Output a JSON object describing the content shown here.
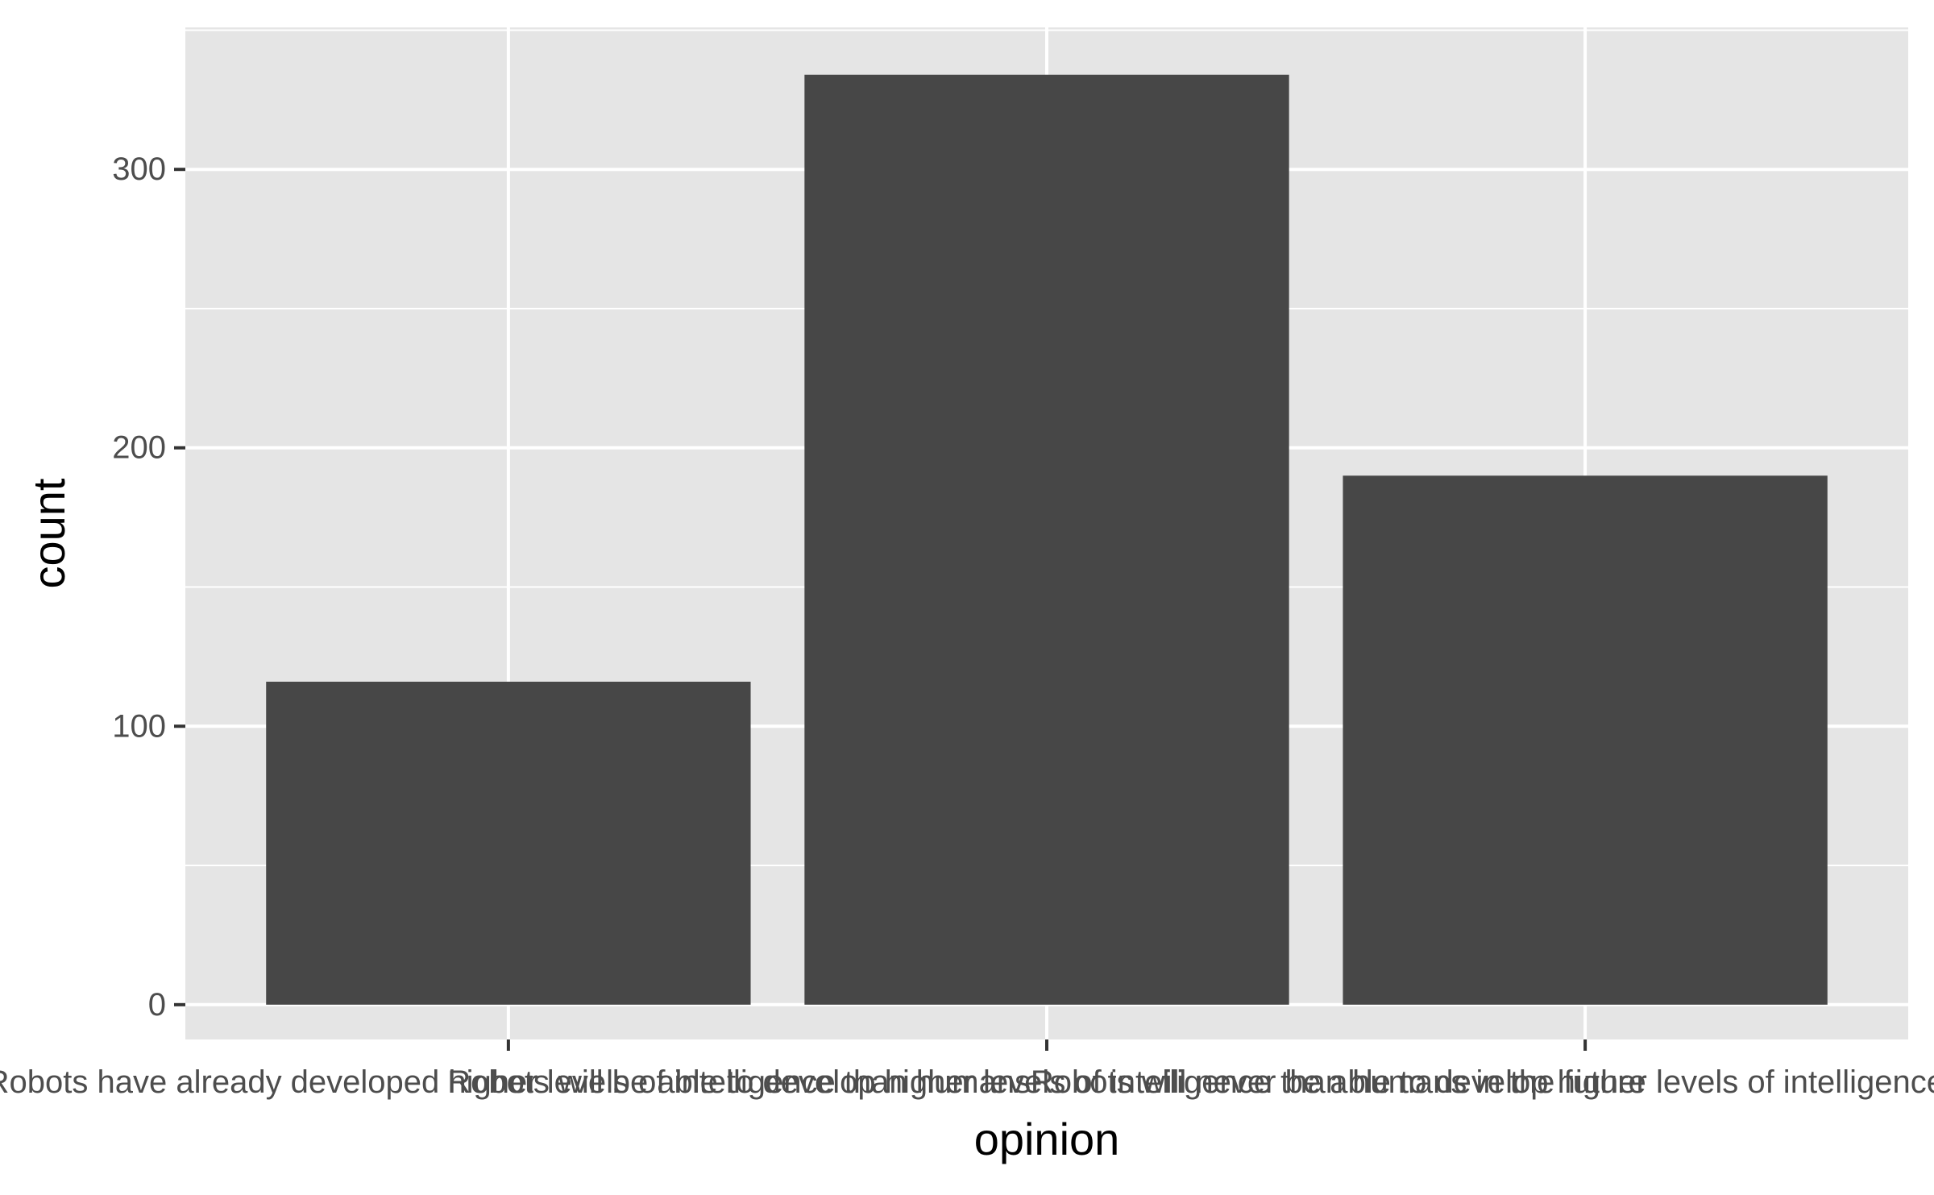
{
  "chart_data": {
    "type": "bar",
    "title": "",
    "xlabel": "opinion",
    "ylabel": "count",
    "categories": [
      "Robots have already developed higher levels of intelligence than humans",
      "Robots will be able to develop higher levels of intelligence than humans in the future",
      "Robots will never be able to develop higher levels of intelligence than humans"
    ],
    "values": [
      116,
      334,
      190
    ],
    "ylim": [
      -12.5,
      351
    ],
    "yticks": [
      0,
      100,
      200,
      300
    ],
    "grid": true,
    "legend": "none",
    "colors": {
      "panel": "#e5e5e5",
      "grid": "#ffffff",
      "bar": "#474747",
      "tick": "#333333"
    }
  }
}
